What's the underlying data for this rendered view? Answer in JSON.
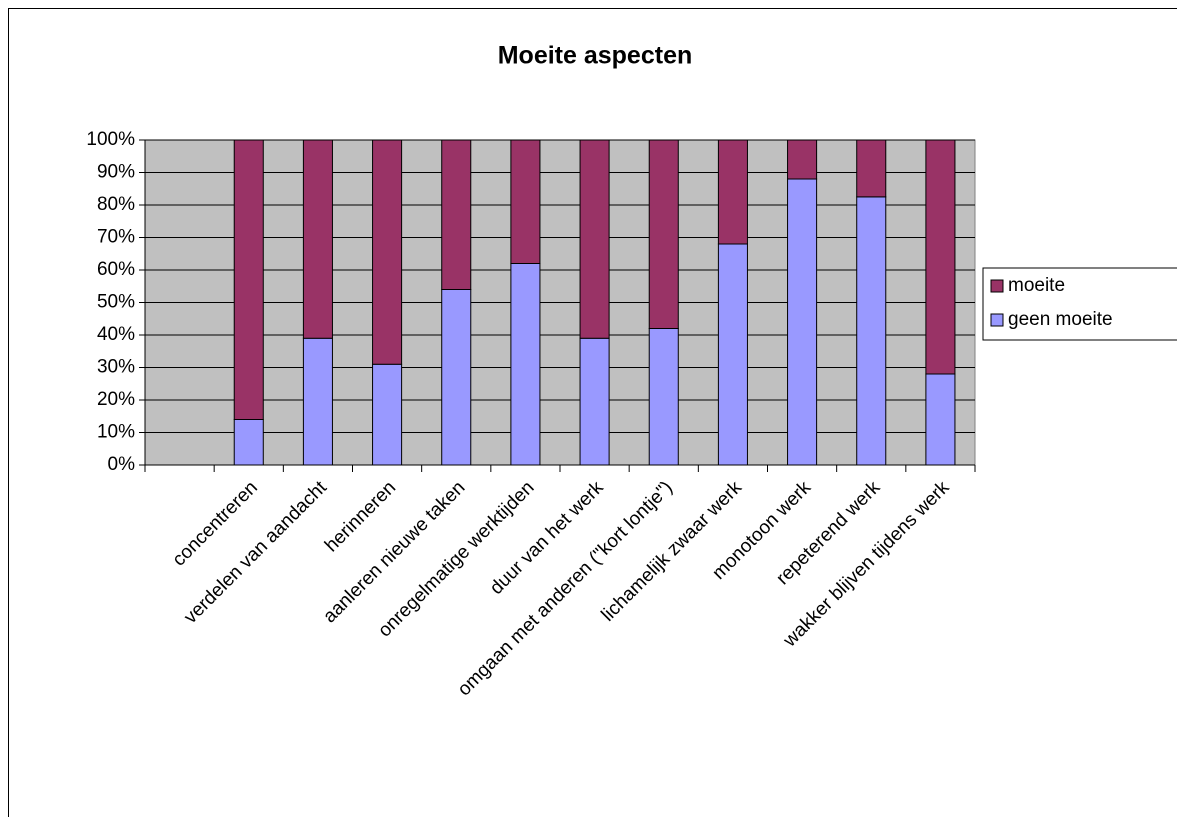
{
  "chart_data": {
    "type": "stacked_bar",
    "title": "Moeite aspecten",
    "categories": [
      null,
      "concentreren",
      "verdelen van aandacht",
      "herinneren",
      "aanleren nieuwe taken",
      "onregelmatige werktijden",
      "duur van het werk",
      "omgaan met anderen (\"kort lontje\")",
      "lichamelijk zwaar werk",
      "monotoon werk",
      "repeterend werk",
      "wakker blijven tijdens werk"
    ],
    "series": [
      {
        "name": "geen moeite",
        "color": "#9999ff",
        "values": [
          null,
          14,
          39,
          31,
          54,
          62,
          39,
          42,
          68,
          88,
          82.5,
          28
        ]
      },
      {
        "name": "moeite",
        "color": "#993366",
        "values": [
          null,
          86,
          61,
          69,
          46,
          38,
          61,
          58,
          32,
          12,
          17.5,
          72
        ]
      }
    ],
    "ylim": [
      0,
      100
    ],
    "yticks": [
      {
        "value": 0,
        "label": "0%"
      },
      {
        "value": 10,
        "label": "10%"
      },
      {
        "value": 20,
        "label": "20%"
      },
      {
        "value": 30,
        "label": "30%"
      },
      {
        "value": 40,
        "label": "40%"
      },
      {
        "value": 50,
        "label": "50%"
      },
      {
        "value": 60,
        "label": "60%"
      },
      {
        "value": 70,
        "label": "70%"
      },
      {
        "value": 80,
        "label": "80%"
      },
      {
        "value": 90,
        "label": "90%"
      },
      {
        "value": 100,
        "label": "100%"
      }
    ],
    "grid": true,
    "legend": "right"
  }
}
